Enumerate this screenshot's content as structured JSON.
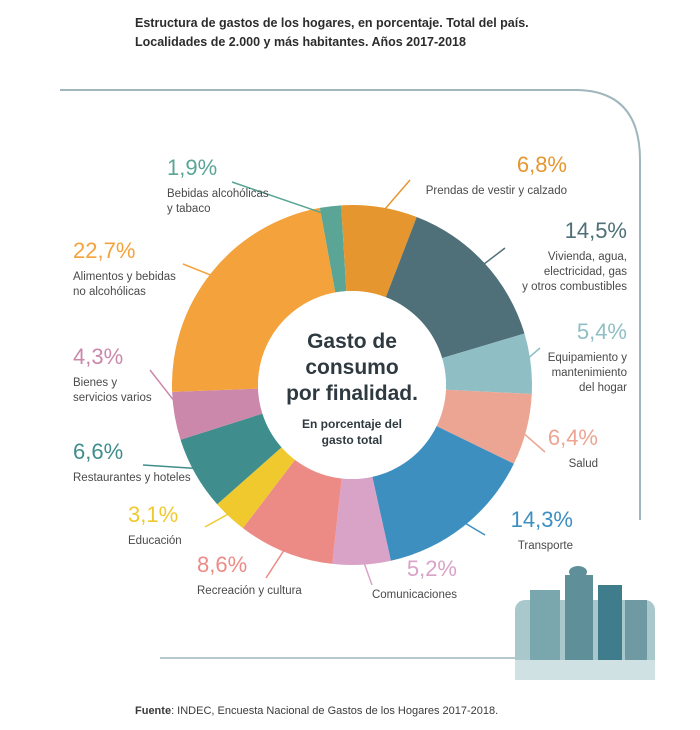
{
  "title_line1": "Estructura de gastos de los hogares, en porcentaje. Total del país.",
  "title_line2": "Localidades de 2.000 y más habitantes. Años 2017-2018",
  "center": {
    "line1": "Gasto de",
    "line2": "consumo",
    "line3": "por finalidad.",
    "sub1": "En porcentaje del",
    "sub2": "gasto total"
  },
  "source_label": "Fuente",
  "source_text": ": INDEC, Encuesta Nacional de Gastos de los Hogares 2017-2018.",
  "chart_data": {
    "type": "pie",
    "title": "Estructura de gastos de los hogares, en porcentaje. Total del país. Localidades de 2.000 y más habitantes. Años 2017-2018",
    "unit": "%",
    "slices": [
      {
        "label": "Bebidas alcohólicas y tabaco",
        "lines": [
          "Bebidas alcohólicas",
          "y tabaco"
        ],
        "value": 1.9,
        "text": "1,9%",
        "color": "#5aa596"
      },
      {
        "label": "Prendas de vestir y calzado",
        "lines": [
          "Prendas de vestir y calzado"
        ],
        "value": 6.8,
        "text": "6,8%",
        "color": "#e6962f"
      },
      {
        "label": "Vivienda, agua, electricidad, gas y otros combustibles",
        "lines": [
          "Vivienda, agua,",
          "electricidad, gas",
          "y otros combustibles"
        ],
        "value": 14.5,
        "text": "14,5%",
        "color": "#4f7078"
      },
      {
        "label": "Equipamiento y mantenimiento del hogar",
        "lines": [
          "Equipamiento y",
          "mantenimiento",
          "del hogar"
        ],
        "value": 5.4,
        "text": "5,4%",
        "color": "#8fbfc4"
      },
      {
        "label": "Salud",
        "lines": [
          "Salud"
        ],
        "value": 6.4,
        "text": "6,4%",
        "color": "#eca593"
      },
      {
        "label": "Transporte",
        "lines": [
          "Transporte"
        ],
        "value": 14.3,
        "text": "14,3%",
        "color": "#3d8fc0"
      },
      {
        "label": "Comunicaciones",
        "lines": [
          "Comunicaciones"
        ],
        "value": 5.2,
        "text": "5,2%",
        "color": "#d9a3c8"
      },
      {
        "label": "Recreación y cultura",
        "lines": [
          "Recreación y cultura"
        ],
        "value": 8.6,
        "text": "8,6%",
        "color": "#ec8b86"
      },
      {
        "label": "Educación",
        "lines": [
          "Educación"
        ],
        "value": 3.1,
        "text": "3,1%",
        "color": "#f0c92e"
      },
      {
        "label": "Restaurantes y hoteles",
        "lines": [
          "Restaurantes y hoteles"
        ],
        "value": 6.6,
        "text": "6,6%",
        "color": "#3f8d8c"
      },
      {
        "label": "Bienes y servicios varios",
        "lines": [
          "Bienes y",
          "servicios varios"
        ],
        "value": 4.3,
        "text": "4,3%",
        "color": "#cb88aa"
      },
      {
        "label": "Alimentos y bebidas no alcohólicas",
        "lines": [
          "Alimentos y bebidas",
          "no alcohólicas"
        ],
        "value": 22.7,
        "text": "22,7%",
        "color": "#f4a23c"
      }
    ]
  }
}
